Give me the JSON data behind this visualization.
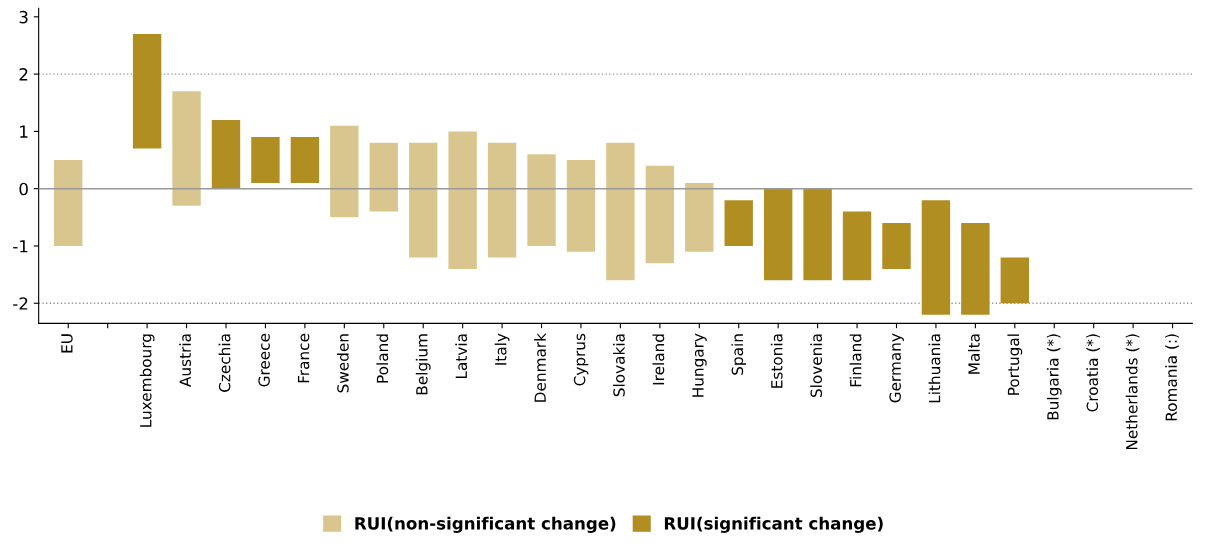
{
  "chart_data": {
    "type": "bar",
    "categories": [
      "EU",
      null,
      "Luxembourg",
      "Austria",
      "Czechia",
      "Greece",
      "France",
      "Sweden",
      "Poland",
      "Belgium",
      "Latvia",
      "Italy",
      "Denmark",
      "Cyprus",
      "Slovakia",
      "Ireland",
      "Hungary",
      "Spain",
      "Estonia",
      "Slovenia",
      "Finland",
      "Germany",
      "Lithuania",
      "Malta",
      "Portugal",
      "Bulgaria (*)",
      "Croatia (*)",
      "Netherlands (*)",
      "Romania (:)"
    ],
    "series": [
      {
        "name": "RUI(non-significant change)",
        "color": "#d9c68e",
        "base": [
          -1.0,
          null,
          null,
          -0.3,
          null,
          null,
          null,
          -0.5,
          -0.4,
          -1.2,
          -1.4,
          -1.2,
          -1.0,
          -1.1,
          -1.6,
          -1.3,
          -1.1,
          null,
          null,
          null,
          null,
          null,
          null,
          null,
          null,
          null,
          null,
          null,
          null
        ],
        "values": [
          1.5,
          null,
          null,
          2.0,
          null,
          null,
          null,
          1.6,
          1.2,
          2.0,
          2.4,
          2.0,
          1.6,
          1.6,
          2.4,
          1.7,
          1.2,
          null,
          null,
          null,
          null,
          null,
          null,
          null,
          null,
          null,
          null,
          null,
          null
        ]
      },
      {
        "name": "RUI(significant change)",
        "color": "#b08e22",
        "base": [
          null,
          null,
          0.7,
          null,
          0.0,
          0.1,
          0.1,
          null,
          null,
          null,
          null,
          null,
          null,
          null,
          null,
          null,
          null,
          -1.0,
          -1.6,
          -1.6,
          -1.6,
          -1.4,
          -2.2,
          -2.2,
          -2.0,
          null,
          null,
          null,
          null
        ],
        "values": [
          null,
          null,
          2.0,
          null,
          1.2,
          0.8,
          0.8,
          null,
          null,
          null,
          null,
          null,
          null,
          null,
          null,
          null,
          null,
          0.8,
          1.6,
          1.6,
          1.2,
          0.8,
          2.0,
          1.6,
          0.8,
          null,
          null,
          null,
          null
        ]
      }
    ],
    "ylim": [
      -2.35,
      3.15
    ],
    "yticks": [
      -2,
      -1,
      0,
      1,
      2,
      3
    ],
    "ref_lines": [
      {
        "axis": "y",
        "value": 0,
        "color": "#999999",
        "line_style": "solid"
      },
      {
        "axis": "y",
        "value": 2,
        "color": "#999999",
        "line_style": "dotted"
      },
      {
        "axis": "y",
        "value": -2,
        "color": "#999999",
        "line_style": "dotted"
      }
    ],
    "grid": false,
    "legend": "bottom"
  }
}
